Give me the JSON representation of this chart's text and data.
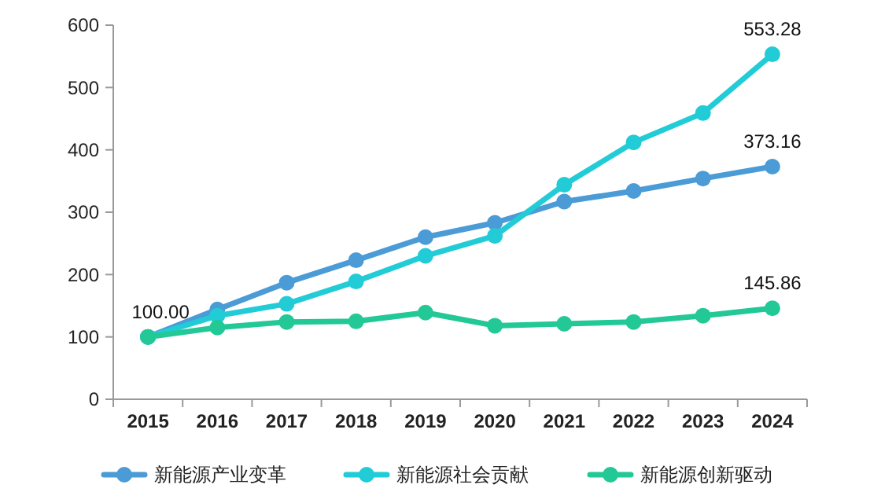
{
  "chart_data": {
    "type": "line",
    "categories": [
      "2015",
      "2016",
      "2017",
      "2018",
      "2019",
      "2020",
      "2021",
      "2022",
      "2023",
      "2024"
    ],
    "series": [
      {
        "name": "新能源产业变革",
        "color": "#4a9bd6",
        "values": [
          100,
          144,
          187,
          223,
          260,
          283,
          317,
          334,
          354,
          373.16
        ]
      },
      {
        "name": "新能源社会贡献",
        "color": "#22ccd6",
        "values": [
          100,
          134,
          153,
          189,
          230,
          262,
          344,
          412,
          459,
          553.28
        ]
      },
      {
        "name": "新能源创新驱动",
        "color": "#22c996",
        "values": [
          100,
          115,
          124,
          125,
          139,
          118,
          121,
          124,
          134,
          145.86
        ]
      }
    ],
    "ylim": [
      0,
      600
    ],
    "yticks": [
      0,
      100,
      200,
      300,
      400,
      500,
      600
    ],
    "grid": false,
    "legend": "bottom",
    "marker": "circle",
    "line_style": "solid",
    "annotations": [
      {
        "text": "100.00",
        "x": "2015",
        "y": 100
      },
      {
        "text": "553.28",
        "x": "2024",
        "y": 553.28
      },
      {
        "text": "373.16",
        "x": "2024",
        "y": 373.16
      },
      {
        "text": "145.86",
        "x": "2024",
        "y": 145.86
      }
    ]
  }
}
